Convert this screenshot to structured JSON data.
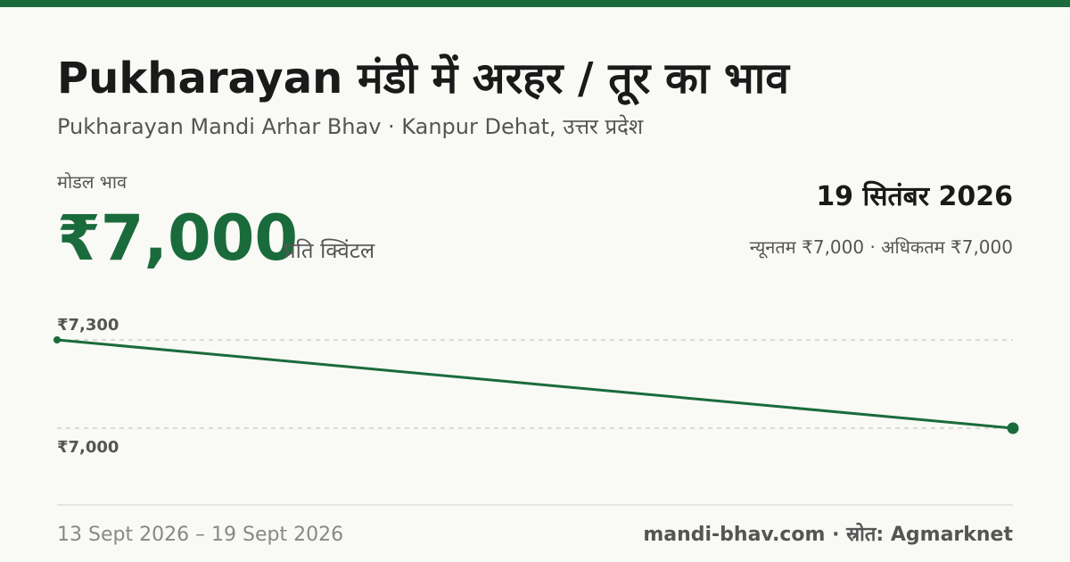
{
  "header": {
    "title": "Pukharayan मंडी में अरहर / तूर का भाव",
    "subtitle": "Pukharayan Mandi Arhar Bhav · Kanpur Dehat, उत्तर प्रदेश"
  },
  "price": {
    "label": "मोडल भाव",
    "value": "₹7,000",
    "unit": "प्रति क्विंटल"
  },
  "date": "19 सितंबर 2026",
  "range": "न्यूनतम ₹7,000 · अधिकतम ₹7,000",
  "chart_data": {
    "type": "line",
    "values": [
      7300,
      7000
    ],
    "color": "#1a6b3c",
    "ylim": [
      7000,
      7300
    ],
    "yticks": [
      {
        "value": 7000,
        "label": "₹7,000"
      },
      {
        "value": 7300,
        "label": "₹7,300"
      }
    ],
    "grid": true
  },
  "footer": {
    "period": "13 Sept 2026 – 19 Sept 2026",
    "source": "mandi-bhav.com · स्रोत: Agmarknet"
  }
}
